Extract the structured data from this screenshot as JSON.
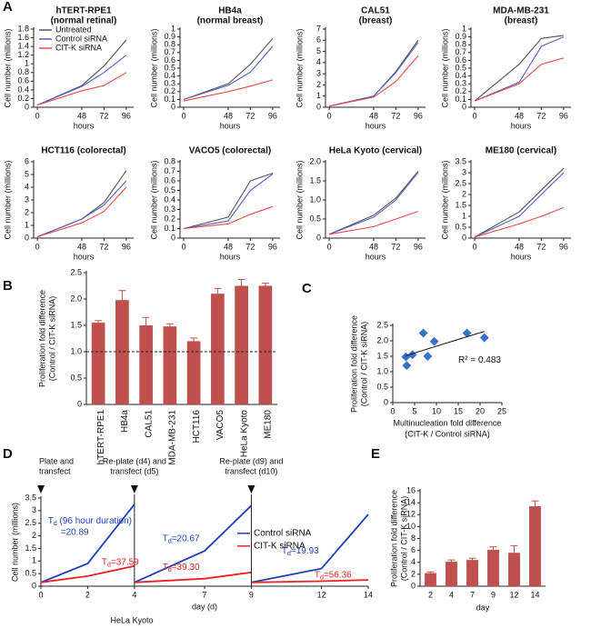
{
  "chart_data": [
    {
      "type": "line",
      "panel": "A",
      "title": [
        "hTERT-RPE1",
        "(normal retinal)"
      ],
      "xlabel": "hours",
      "ylabel": "Cell number (millions)",
      "x": [
        0,
        48,
        72,
        96
      ],
      "xlim": [
        -4,
        104
      ],
      "xticks": [
        0,
        48,
        72,
        96
      ],
      "ylim": [
        0,
        1.8
      ],
      "yticks": [
        0,
        0.2,
        0.4,
        0.6,
        0.8,
        1,
        1.2,
        1.4,
        1.6,
        1.8
      ],
      "legend": "upper left",
      "series": [
        {
          "name": "Untreated",
          "color": "#555555",
          "values": [
            0.05,
            0.5,
            0.95,
            1.55
          ]
        },
        {
          "name": "Control siRNA",
          "color": "#5060c8",
          "values": [
            0.05,
            0.48,
            0.8,
            1.2
          ]
        },
        {
          "name": "CIT-K siRNA",
          "color": "#f04848",
          "values": [
            0.05,
            0.38,
            0.5,
            0.8
          ]
        }
      ]
    },
    {
      "type": "line",
      "title": [
        "HB4a",
        "(normal breast)"
      ],
      "xlabel": "hours",
      "ylabel": "Cell number (millions)",
      "x": [
        0,
        48,
        72,
        96
      ],
      "xlim": [
        -4,
        104
      ],
      "xticks": [
        0,
        48,
        72,
        96
      ],
      "ylim": [
        0,
        1
      ],
      "yticks": [
        0,
        0.1,
        0.2,
        0.3,
        0.4,
        0.5,
        0.6,
        0.7,
        0.8,
        0.9,
        1
      ],
      "series": [
        {
          "color": "#555555",
          "values": [
            0.1,
            0.3,
            0.55,
            0.88
          ]
        },
        {
          "color": "#5060c8",
          "values": [
            0.1,
            0.28,
            0.45,
            0.78
          ]
        },
        {
          "color": "#f04848",
          "values": [
            0.08,
            0.2,
            0.27,
            0.35
          ]
        }
      ]
    },
    {
      "type": "line",
      "title": [
        "CAL51",
        "(breast)"
      ],
      "xlabel": "hours",
      "ylabel": "Cell number (millions)",
      "x": [
        0,
        48,
        72,
        96
      ],
      "xlim": [
        -4,
        104
      ],
      "xticks": [
        0,
        48,
        72,
        96
      ],
      "ylim": [
        0,
        7
      ],
      "yticks": [
        0,
        1,
        2,
        3,
        4,
        5,
        6,
        7
      ],
      "series": [
        {
          "color": "#555555",
          "values": [
            0.1,
            1.0,
            3.2,
            6.0
          ]
        },
        {
          "color": "#5060c8",
          "values": [
            0.1,
            1.0,
            3.1,
            5.8
          ]
        },
        {
          "color": "#f04848",
          "values": [
            0.1,
            0.9,
            2.3,
            4.6
          ]
        }
      ]
    },
    {
      "type": "line",
      "title": [
        "MDA-MB-231",
        "(breast)"
      ],
      "xlabel": "hours",
      "ylabel": "Cell number (millions)",
      "x": [
        0,
        48,
        72,
        96
      ],
      "xlim": [
        -4,
        104
      ],
      "xticks": [
        0,
        48,
        72,
        96
      ],
      "ylim": [
        0,
        1
      ],
      "yticks": [
        0,
        0.1,
        0.2,
        0.3,
        0.4,
        0.5,
        0.6,
        0.7,
        0.8,
        0.9,
        1
      ],
      "series": [
        {
          "color": "#555555",
          "values": [
            0.08,
            0.55,
            0.88,
            0.92
          ]
        },
        {
          "color": "#5060c8",
          "values": [
            0.08,
            0.32,
            0.78,
            0.9
          ]
        },
        {
          "color": "#f04848",
          "values": [
            0.08,
            0.3,
            0.55,
            0.63
          ]
        }
      ]
    },
    {
      "type": "line",
      "title": [
        "HCT116 (colorectal)"
      ],
      "xlabel": "hours",
      "ylabel": "Cell number (millions)",
      "x": [
        0,
        48,
        72,
        96
      ],
      "xlim": [
        -4,
        104
      ],
      "xticks": [
        0,
        48,
        72,
        96
      ],
      "ylim": [
        0,
        6
      ],
      "yticks": [
        0,
        1,
        2,
        3,
        4,
        5,
        6
      ],
      "series": [
        {
          "color": "#555555",
          "values": [
            0.1,
            1.5,
            2.8,
            5.3
          ]
        },
        {
          "color": "#5060c8",
          "values": [
            0.1,
            1.5,
            2.6,
            4.5
          ]
        },
        {
          "color": "#f04848",
          "values": [
            0.1,
            1.2,
            2.1,
            4.0
          ]
        }
      ]
    },
    {
      "type": "line",
      "title": [
        "VACO5 (colorectal)"
      ],
      "xlabel": "hours",
      "ylabel": "Cell number (millions)",
      "x": [
        0,
        48,
        72,
        96
      ],
      "xlim": [
        -4,
        104
      ],
      "xticks": [
        0,
        48,
        72,
        96
      ],
      "ylim": [
        0,
        0.8
      ],
      "yticks": [
        0,
        0.1,
        0.2,
        0.3,
        0.4,
        0.5,
        0.6,
        0.7,
        0.8
      ],
      "series": [
        {
          "color": "#555555",
          "values": [
            0.1,
            0.22,
            0.6,
            0.68
          ]
        },
        {
          "color": "#5060c8",
          "values": [
            0.1,
            0.18,
            0.5,
            0.67
          ]
        },
        {
          "color": "#f04848",
          "values": [
            0.1,
            0.15,
            0.25,
            0.33
          ]
        }
      ]
    },
    {
      "type": "line",
      "title": [
        "HeLa Kyoto (cervical)"
      ],
      "xlabel": "hours",
      "ylabel": "Cell number (millions)",
      "x": [
        0,
        48,
        72,
        96
      ],
      "xlim": [
        -4,
        104
      ],
      "xticks": [
        0,
        48,
        72,
        96
      ],
      "ylim": [
        0,
        2
      ],
      "yticks": [
        0,
        0.5,
        {
          "value": 1,
          "label": "1.0"
        },
        1.5,
        {
          "value": 2,
          "label": "2.0"
        }
      ],
      "series": [
        {
          "color": "#555555",
          "values": [
            0.1,
            0.6,
            1.05,
            1.75
          ]
        },
        {
          "color": "#5060c8",
          "values": [
            0.1,
            0.55,
            1.0,
            1.72
          ]
        },
        {
          "color": "#f04848",
          "values": [
            0.1,
            0.3,
            0.5,
            0.7
          ]
        }
      ]
    },
    {
      "type": "line",
      "title": [
        "ME180 (cervical)"
      ],
      "xlabel": "hours",
      "ylabel": "Cell number (millions)",
      "x": [
        0,
        48,
        72,
        96
      ],
      "xlim": [
        -4,
        104
      ],
      "xticks": [
        0,
        48,
        72,
        96
      ],
      "ylim": [
        0,
        3.5
      ],
      "yticks": [
        0,
        0.5,
        1,
        1.5,
        2,
        2.5,
        3,
        3.5
      ],
      "series": [
        {
          "color": "#555555",
          "values": [
            0.05,
            1.2,
            2.2,
            3.2
          ]
        },
        {
          "color": "#5060c8",
          "values": [
            0.05,
            1.0,
            2.0,
            3.0
          ]
        },
        {
          "color": "#f04848",
          "values": [
            0.05,
            0.65,
            1.0,
            1.4
          ]
        }
      ]
    },
    {
      "type": "bar",
      "panel": "B",
      "ylabel": [
        "Proliferation fold difference",
        "(Control / CIT-K siRNA)"
      ],
      "categories": [
        "hTERT-RPE1",
        "HB4a",
        "CAL51",
        "MDA-MB-231",
        "HCT116",
        "VACO5",
        "HeLa Kyoto",
        "ME180"
      ],
      "values": [
        1.55,
        1.98,
        1.5,
        1.48,
        1.2,
        2.1,
        2.25,
        2.25
      ],
      "errors": [
        0.04,
        0.18,
        0.15,
        0.05,
        0.06,
        0.1,
        0.12,
        0.05
      ],
      "color": "#c0504d",
      "xtick_rotation": 90,
      "hline": 1,
      "ylim": [
        0,
        2.5
      ],
      "yticks": [
        0,
        0.5,
        {
          "value": 1,
          "label": "1.0"
        },
        1.5,
        {
          "value": 2,
          "label": "2.0"
        },
        2.5
      ]
    },
    {
      "type": "scatter",
      "panel": "C",
      "ylabel": [
        "Proliferation fold difference",
        "(Control / CIT-K siRNA)"
      ],
      "xlabel": [
        "Multinucleation fold difference",
        "(CIT-K / Control siRNA)"
      ],
      "x": [
        3,
        3.2,
        4.5,
        7,
        8,
        9.5,
        17,
        21
      ],
      "values": [
        1.48,
        1.2,
        1.55,
        2.25,
        1.5,
        1.98,
        2.25,
        2.1
      ],
      "color": "#3a6fc4",
      "trendline": true,
      "annotation": "R² = 0.483",
      "xlim": [
        0,
        25
      ],
      "xticks": [
        0,
        5,
        10,
        15,
        20,
        25
      ],
      "ylim": [
        0,
        2.5
      ],
      "yticks": [
        0,
        0.5,
        {
          "value": 1,
          "label": "1.0"
        },
        1.5,
        {
          "value": 2,
          "label": "2.0"
        },
        2.5
      ]
    },
    {
      "type": "line",
      "panel": "D",
      "xlabel": "day (d)",
      "ylabel": "Cell number (millions)",
      "footnote": "HeLa Kyoto",
      "x": [
        0,
        2,
        4,
        null,
        4,
        7,
        9,
        null,
        9,
        12,
        14
      ],
      "xlim": [
        0,
        14
      ],
      "xticks": [
        0,
        2,
        4,
        7,
        9,
        12,
        14
      ],
      "ylim": [
        0,
        3.5
      ],
      "yticks": [
        0,
        0.5,
        1,
        1.5,
        2,
        2.5,
        3,
        3.5
      ],
      "legend": "center right",
      "series": [
        {
          "name": "Control siRNA",
          "color": "#1f3fbf",
          "values": [
            0.15,
            0.9,
            3.25,
            null,
            0.15,
            1.4,
            3.2,
            null,
            0.15,
            0.7,
            2.85
          ]
        },
        {
          "name": "CIT-K siRNA",
          "color": "#ee2222",
          "values": [
            0.15,
            0.4,
            0.8,
            null,
            0.15,
            0.3,
            0.55,
            null,
            0.15,
            0.2,
            0.25
          ]
        }
      ],
      "events": [
        {
          "x": 0,
          "label": [
            "Plate and",
            "transfect"
          ]
        },
        {
          "x": 4,
          "label": [
            "Re-plate (d4) and",
            "transfect (d5)"
          ]
        },
        {
          "x": 9,
          "label": [
            "Re-plate (d9) and",
            "transfect (d10)"
          ]
        }
      ],
      "annotations": [
        {
          "base": "T",
          "sub": "d",
          "text": " (96 hour duration)",
          "text2": "=20.89",
          "color": "#1f3fbf"
        },
        {
          "base": "T",
          "sub": "d",
          "text": "=37.59",
          "color": "#ee2222"
        },
        {
          "base": "T",
          "sub": "d",
          "text": "=20.67",
          "color": "#1f3fbf"
        },
        {
          "base": "T",
          "sub": "d",
          "text": "=39.30",
          "color": "#ee2222"
        },
        {
          "base": "T",
          "sub": "d",
          "text": "=19.93",
          "color": "#1f3fbf"
        },
        {
          "base": "T",
          "sub": "d",
          "text": "=56.36",
          "color": "#ee2222"
        }
      ]
    },
    {
      "type": "bar",
      "panel": "E",
      "xlabel": "day",
      "ylabel": [
        "Proliferation fold difference",
        "(Control / CIT-K siRNA)"
      ],
      "categories": [
        2,
        4,
        7,
        9,
        12,
        14
      ],
      "values": [
        2.2,
        4.1,
        4.4,
        6.1,
        5.6,
        13.4
      ],
      "errors": [
        0.2,
        0.3,
        0.3,
        0.5,
        1.2,
        0.9
      ],
      "color": "#c0504d",
      "ylim": [
        0,
        16
      ],
      "yticks": [
        0,
        2,
        4,
        6,
        8,
        10,
        12,
        14,
        16
      ]
    }
  ]
}
